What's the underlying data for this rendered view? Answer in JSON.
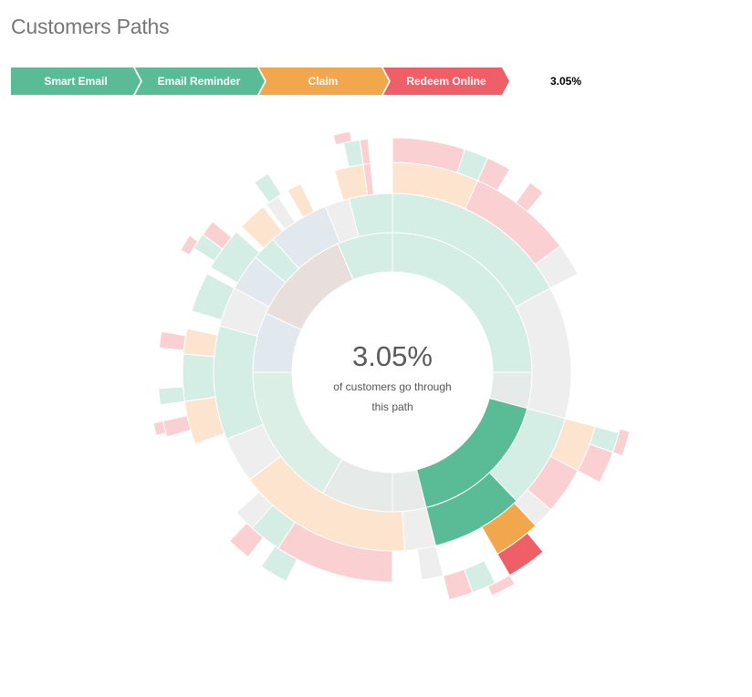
{
  "page_title": "Customers Paths",
  "breadcrumb": {
    "steps": [
      {
        "label": "Smart Email",
        "color": "#5abc96"
      },
      {
        "label": "Email Reminder",
        "color": "#5abc96"
      },
      {
        "label": "Claim",
        "color": "#f2a74d"
      },
      {
        "label": "Redeem Online",
        "color": "#ee5f67"
      }
    ],
    "percentage": "3.05%"
  },
  "center": {
    "percentage": "3.05%",
    "line1": "of customers go through",
    "line2": "this path"
  },
  "colors": {
    "smart_email": "#5abc96",
    "email_reminder": "#5abc96",
    "claim": "#f2a74d",
    "redeem_online": "#ee5f67",
    "unhighlighted_opacity": 0.28
  },
  "chart_data": {
    "type": "sunburst",
    "highlighted_path": [
      "Smart Email",
      "Email Reminder",
      "Claim",
      "Redeem Online"
    ],
    "highlighted_share": 3.05,
    "unit": "% of customers"
  }
}
